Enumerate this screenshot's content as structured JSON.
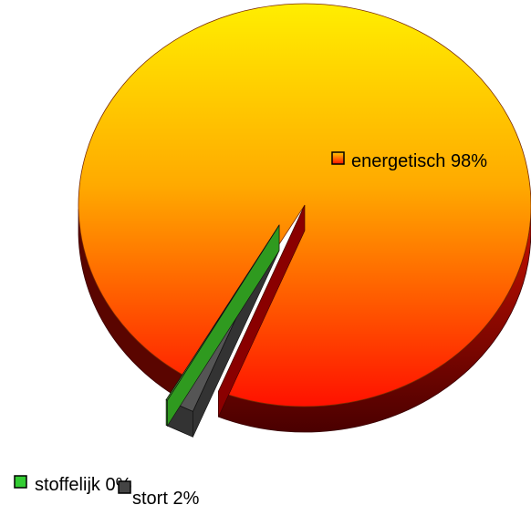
{
  "chart_data": {
    "type": "pie",
    "style": "3d-exploded",
    "title": "",
    "slices": [
      {
        "label": "energetisch",
        "value": 98,
        "display": "energetisch 98%",
        "color_top": "#ffee00",
        "color_bottom": "#ff1100",
        "swatch": "#e8201a"
      },
      {
        "label": "stort",
        "value": 2,
        "display": "stort 2%",
        "color_top": "#555555",
        "color_bottom": "#333333",
        "swatch": "#444444"
      },
      {
        "label": "stoffelijk",
        "value": 0,
        "display": "stoffelijk 0%",
        "color_top": "#55cc33",
        "color_bottom": "#2f9a1f",
        "swatch": "#33cc33"
      }
    ],
    "legend_placement": "inline-labels"
  }
}
